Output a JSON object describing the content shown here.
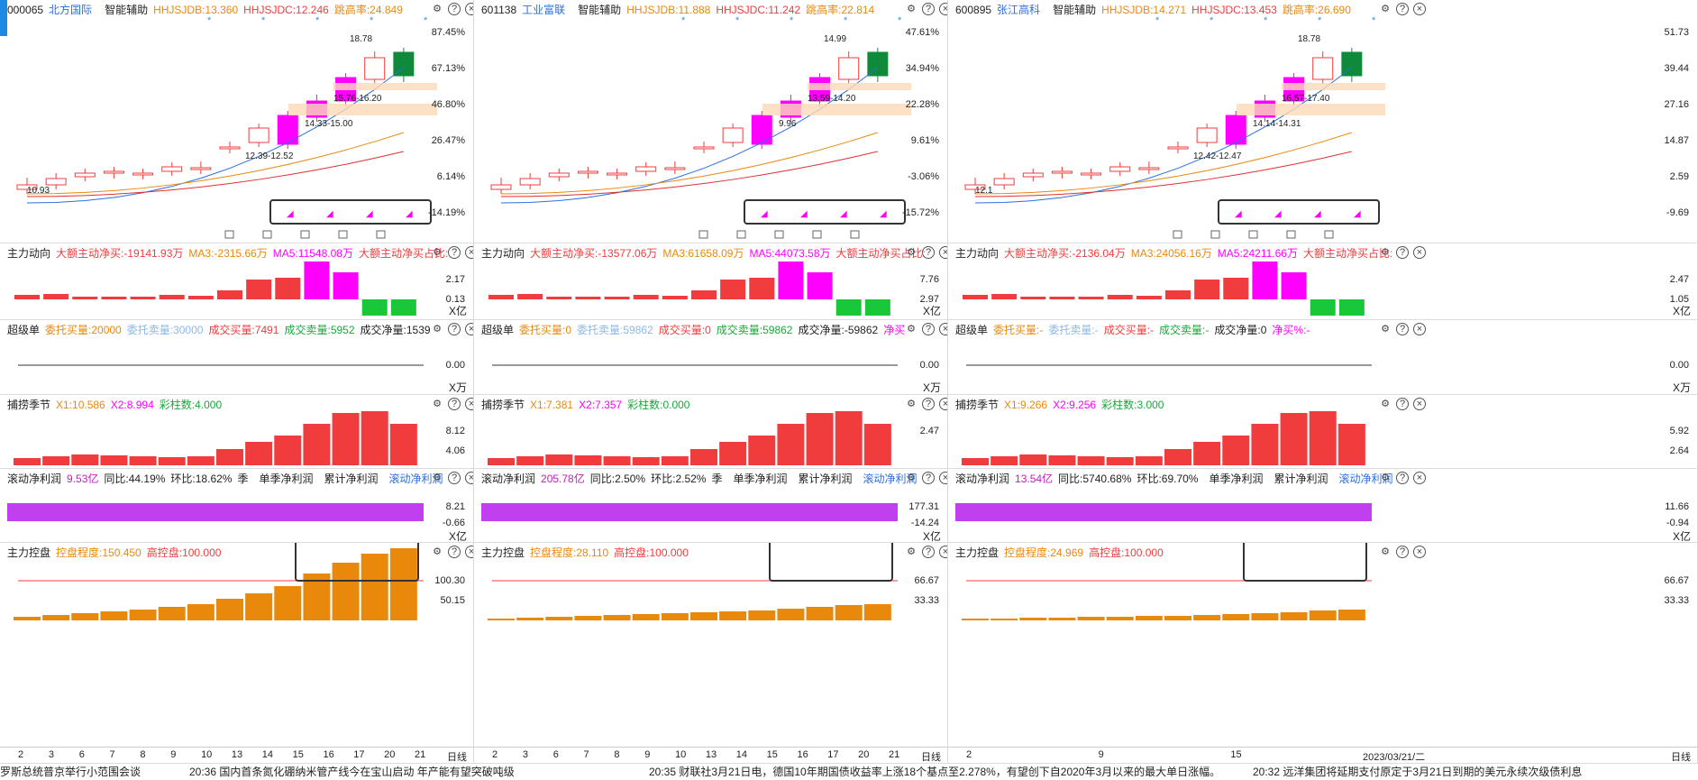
{
  "panels": [
    {
      "code": "000065",
      "name": "北方国际",
      "assist": "智能辅助",
      "hh_sdb": "HHJSJDB:13.360",
      "hh_sdc": "HHJSJDC:12.246",
      "jump": "跳高率:24.849",
      "price_axis": [
        "87.45%",
        "67.13%",
        "46.80%",
        "26.47%",
        "6.14%",
        "-14.19%"
      ],
      "price_labels": [
        "18.78",
        "15.76-16.20",
        "14.33-15.00",
        "12.39-12.52",
        "10.93"
      ],
      "zhuli_label": "主力动向",
      "zhuli_vals": [
        "大额主动净买:-19141.93万",
        "MA3:-2315.66万",
        "MA5:11548.08万",
        "大额主动净买占比:"
      ],
      "zhuli_axis": [
        "2.17",
        "0.13"
      ],
      "zhuli_unit": "X亿",
      "super_label": "超级单",
      "super_vals": [
        "委托买量:20000",
        "委托卖量:30000",
        "成交买量:7491",
        "成交卖量:5952",
        "成交净量:1539"
      ],
      "super_axis": [
        "0.00"
      ],
      "super_unit": "X万",
      "season_label": "捕捞季节",
      "season_vals": [
        "X1:10.586",
        "X2:8.994",
        "彩柱数:4.000"
      ],
      "season_axis": [
        "8.12",
        "4.06"
      ],
      "profit_label": "滚动净利润",
      "profit_vals": [
        "9.53亿",
        "同比:44.19%",
        "环比:18.62%",
        "季"
      ],
      "profit_tabs": [
        "单季净利润",
        "累计净利润",
        "滚动净利润"
      ],
      "profit_axis": [
        "8.21",
        "-0.66"
      ],
      "profit_unit": "X亿",
      "ctrl_label": "主力控盘",
      "ctrl_vals": [
        "控盘程度:150.450",
        "高控盘:100.000"
      ],
      "ctrl_axis": [
        "100.30",
        "50.15"
      ],
      "dates": [
        "2",
        "3",
        "6",
        "7",
        "8",
        "9",
        "10",
        "13",
        "14",
        "15",
        "16",
        "17",
        "20",
        "21"
      ],
      "period": "日线"
    },
    {
      "code": "601138",
      "name": "工业富联",
      "assist": "智能辅助",
      "hh_sdb": "HHJSJDB:11.888",
      "hh_sdc": "HHJSJDC:11.242",
      "jump": "跳高率:22.814",
      "price_axis": [
        "47.61%",
        "34.94%",
        "22.28%",
        "9.61%",
        "-3.06%",
        "-15.72%"
      ],
      "price_labels": [
        "14.99",
        "13.59-14.20",
        "9.96"
      ],
      "zhuli_label": "主力动向",
      "zhuli_vals": [
        "大额主动净买:-13577.06万",
        "MA3:61658.09万",
        "MA5:44073.58万",
        "大额主动净买占比:"
      ],
      "zhuli_axis": [
        "7.76",
        "2.97"
      ],
      "zhuli_unit": "X亿",
      "super_label": "超级单",
      "super_vals": [
        "委托买量:0",
        "委托卖量:59862",
        "成交买量:0",
        "成交卖量:59862",
        "成交净量:-59862",
        "净买"
      ],
      "super_axis": [
        "0.00"
      ],
      "super_unit": "X万",
      "season_label": "捕捞季节",
      "season_vals": [
        "X1:7.381",
        "X2:7.357",
        "彩柱数:0.000"
      ],
      "season_axis": [
        "2.47"
      ],
      "profit_label": "滚动净利润",
      "profit_vals": [
        "205.78亿",
        "同比:2.50%",
        "环比:2.52%",
        "季"
      ],
      "profit_tabs": [
        "单季净利润",
        "累计净利润",
        "滚动净利润"
      ],
      "profit_axis": [
        "177.31",
        "-14.24"
      ],
      "profit_unit": "X亿",
      "ctrl_label": "主力控盘",
      "ctrl_vals": [
        "控盘程度:28.110",
        "高控盘:100.000"
      ],
      "ctrl_axis": [
        "66.67",
        "33.33"
      ],
      "dates": [
        "2",
        "3",
        "6",
        "7",
        "8",
        "9",
        "10",
        "13",
        "14",
        "15",
        "16",
        "17",
        "20",
        "21"
      ],
      "period": "日线"
    },
    {
      "code": "600895",
      "name": "张江高科",
      "assist": "智能辅助",
      "hh_sdb": "HHJSJDB:14.271",
      "hh_sdc": "HHJSJDC:13.453",
      "jump": "跳高率:26.690",
      "price_axis": [
        "51.73",
        "39.44",
        "27.16",
        "14.87",
        "2.59",
        "-9.69"
      ],
      "price_labels": [
        "18.78",
        "16.57-17.40",
        "14.14-14.31",
        "12.42-12.47",
        "12.1"
      ],
      "zhuli_label": "主力动向",
      "zhuli_vals": [
        "大额主动净买:-2136.04万",
        "MA3:24056.16万",
        "MA5:24211.66万",
        "大额主动净买占比:"
      ],
      "zhuli_axis": [
        "2.47",
        "1.05"
      ],
      "zhuli_unit": "X亿",
      "super_label": "超级单",
      "super_vals": [
        "委托买量:-",
        "委托卖量:-",
        "成交买量:-",
        "成交卖量:-",
        "成交净量:0",
        "净买%:-"
      ],
      "super_axis": [
        "0.00"
      ],
      "super_unit": "X万",
      "season_label": "捕捞季节",
      "season_vals": [
        "X1:9.266",
        "X2:9.256",
        "彩柱数:3.000"
      ],
      "season_axis": [
        "5.92",
        "2.64"
      ],
      "profit_label": "滚动净利润",
      "profit_vals": [
        "13.54亿",
        "同比:5740.68%",
        "环比:69.70%"
      ],
      "profit_tabs": [
        "单季净利润",
        "累计净利润",
        "滚动净利润"
      ],
      "profit_axis": [
        "11.66",
        "-0.94"
      ],
      "profit_unit": "X亿",
      "ctrl_label": "主力控盘",
      "ctrl_vals": [
        "控盘程度:24.969",
        "高控盘:100.000"
      ],
      "ctrl_axis": [
        "66.67",
        "33.33"
      ],
      "dates": [
        "2",
        "9",
        "15",
        "2023/03/21/二"
      ],
      "period": "日线"
    }
  ],
  "ticker": [
    "罗斯总统普京举行小范围会谈",
    "20:36 国内首条氮化硼纳米管产线今在宝山启动 年产能有望突破吨级",
    "20:35 财联社3月21日电，德国10年期国债收益率上涨18个基点至2.278%，有望创下自2020年3月以来的最大单日涨幅。",
    "20:32 远洋集团将延期支付原定于3月21日到期的美元永续次级债利息"
  ],
  "colors": {
    "up": "#f03c3c",
    "down": "#0e8a3a",
    "magenta": "#ff00ff",
    "orange": "#e8890c",
    "blue": "#2a6fe0"
  }
}
